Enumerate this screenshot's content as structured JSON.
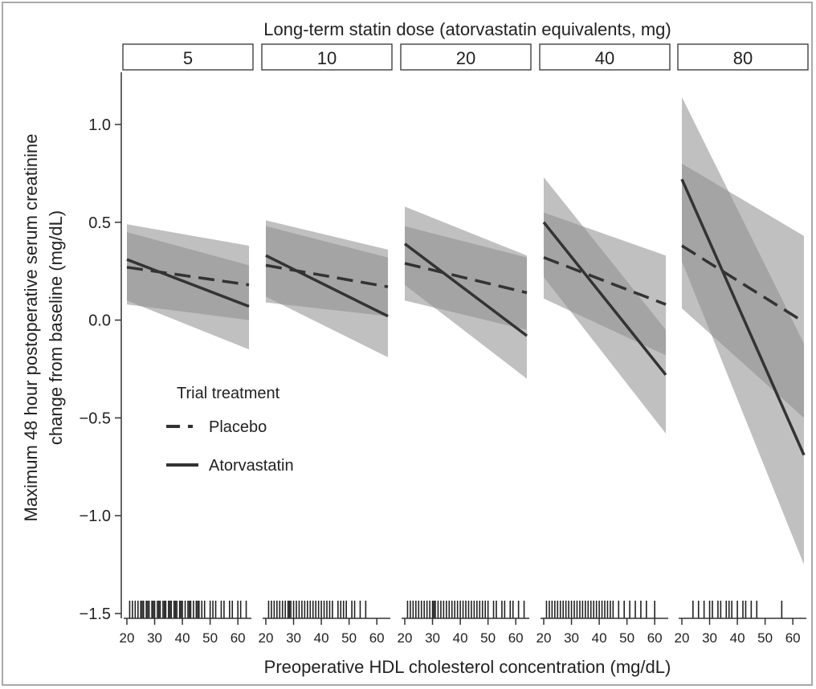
{
  "chart_data": {
    "type": "line",
    "facet_title": "Long-term statin dose (atorvastatin equivalents, mg)",
    "facets": [
      "5",
      "10",
      "20",
      "40",
      "80"
    ],
    "xlabel": "Preoperative HDL cholesterol concentration (mg/dL)",
    "ylabel": [
      "Maximum 48 hour postoperative serum creatinine",
      "change from baseline (mg/dL)"
    ],
    "xlim": [
      20,
      64
    ],
    "ylim": [
      -1.5,
      1.2
    ],
    "xticks": [
      20,
      30,
      40,
      50,
      60
    ],
    "yticks": [
      1.0,
      0.5,
      0.0,
      -0.5,
      -1.0,
      -1.5
    ],
    "ytick_labels": [
      "1.0",
      "0.5",
      "0.0",
      "−0.5",
      "−1.0",
      "−1.5"
    ],
    "legend": {
      "title": "Trial treatment",
      "position": "left, inside first facets",
      "entries": [
        {
          "name": "Placebo",
          "style": "dashed"
        },
        {
          "name": "Atorvastatin",
          "style": "solid"
        }
      ]
    },
    "panels": [
      {
        "dose": "5",
        "placebo": {
          "x": [
            20,
            64
          ],
          "y": [
            0.27,
            0.18
          ],
          "ci_lower": [
            0.08,
            0.0
          ],
          "ci_upper": [
            0.45,
            0.28
          ]
        },
        "atorvastatin": {
          "x": [
            20,
            64
          ],
          "y": [
            0.31,
            0.07
          ],
          "ci_lower": [
            0.1,
            -0.15
          ],
          "ci_upper": [
            0.49,
            0.38
          ]
        }
      },
      {
        "dose": "10",
        "placebo": {
          "x": [
            20,
            64
          ],
          "y": [
            0.28,
            0.17
          ],
          "ci_lower": [
            0.09,
            0.02
          ],
          "ci_upper": [
            0.48,
            0.32
          ]
        },
        "atorvastatin": {
          "x": [
            20,
            64
          ],
          "y": [
            0.33,
            0.02
          ],
          "ci_lower": [
            0.12,
            -0.19
          ],
          "ci_upper": [
            0.51,
            0.36
          ]
        }
      },
      {
        "dose": "20",
        "placebo": {
          "x": [
            20,
            64
          ],
          "y": [
            0.29,
            0.14
          ],
          "ci_lower": [
            0.1,
            -0.05
          ],
          "ci_upper": [
            0.48,
            0.32
          ]
        },
        "atorvastatin": {
          "x": [
            20,
            64
          ],
          "y": [
            0.39,
            -0.08
          ],
          "ci_lower": [
            0.18,
            -0.3
          ],
          "ci_upper": [
            0.58,
            0.33
          ]
        }
      },
      {
        "dose": "40",
        "placebo": {
          "x": [
            20,
            64
          ],
          "y": [
            0.32,
            0.08
          ],
          "ci_lower": [
            0.11,
            -0.18
          ],
          "ci_upper": [
            0.55,
            0.33
          ]
        },
        "atorvastatin": {
          "x": [
            20,
            64
          ],
          "y": [
            0.5,
            -0.28
          ],
          "ci_lower": [
            0.22,
            -0.58
          ],
          "ci_upper": [
            0.73,
            -0.05
          ]
        }
      },
      {
        "dose": "80",
        "placebo": {
          "x": [
            20,
            64
          ],
          "y": [
            0.38,
            -0.01
          ],
          "ci_lower": [
            0.06,
            -0.5
          ],
          "ci_upper": [
            0.8,
            0.43
          ]
        },
        "atorvastatin": {
          "x": [
            20,
            64
          ],
          "y": [
            0.72,
            -0.69
          ],
          "ci_lower": [
            0.3,
            -1.25
          ],
          "ci_upper": [
            1.14,
            -0.12
          ]
        }
      }
    ],
    "rug_hdl_values": [
      [
        21,
        22,
        23,
        24,
        25,
        25.5,
        26,
        27,
        27.5,
        28,
        29,
        29.5,
        30,
        31,
        31.5,
        32,
        33,
        33.5,
        34,
        35,
        35.5,
        36,
        37,
        37.5,
        38,
        39,
        39.5,
        40,
        41,
        42,
        42.5,
        43,
        44,
        45,
        45.5,
        46,
        47,
        48,
        50,
        51,
        52,
        54,
        55,
        57,
        58,
        60,
        61,
        63
      ],
      [
        21,
        22,
        23,
        24,
        25,
        26,
        27,
        28,
        28.5,
        29,
        30,
        31,
        32,
        33,
        34,
        35,
        36,
        37,
        38,
        39,
        40,
        41,
        42,
        43,
        44,
        46,
        47,
        48,
        49,
        51,
        52,
        54,
        56
      ],
      [
        21,
        22,
        23,
        24,
        25,
        26,
        27,
        28,
        29,
        30,
        30.5,
        31,
        32,
        33,
        34,
        35,
        36,
        37,
        38,
        39,
        40,
        41,
        42,
        43,
        44,
        45,
        46,
        47,
        48,
        49,
        50,
        52,
        53,
        55,
        56,
        58,
        59,
        61,
        63
      ],
      [
        21,
        22,
        23,
        24,
        25,
        26,
        27,
        28,
        29,
        30,
        31,
        32,
        33,
        34,
        35,
        36,
        37,
        38,
        39,
        40,
        41,
        42,
        43,
        44,
        45,
        47,
        49,
        51,
        53,
        55,
        57,
        60
      ],
      [
        24,
        26,
        28,
        30,
        31,
        33,
        34,
        36,
        37,
        38,
        40,
        42,
        43,
        45,
        47,
        56
      ]
    ]
  },
  "colors": {
    "band": "#8c8c8c",
    "band_opacity": 0.55,
    "line": "#333333",
    "text": "#222222",
    "frame": "#a9a9a9"
  }
}
